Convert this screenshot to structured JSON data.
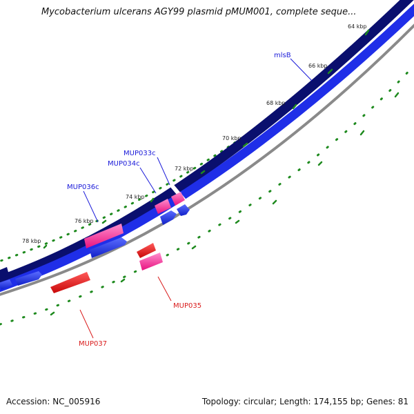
{
  "header": {
    "title": "Mycobacterium ulcerans AGY99 plasmid pMUM001, complete seque..."
  },
  "footer": {
    "accession": "Accession: NC_005916",
    "summary": "Topology: circular; Length: 174,155 bp; Genes: 81"
  },
  "scale": {
    "tick_labels": [
      "64 kbp",
      "66 kbp",
      "68 kbp",
      "70 kbp",
      "72 kbp",
      "74 kbp",
      "76 kbp",
      "78 kbp"
    ]
  },
  "genes": [
    {
      "label": "mlsB",
      "color": "#1a1ad9"
    },
    {
      "label": "MUP033c",
      "color": "#1a1ad9"
    },
    {
      "label": "MUP034c",
      "color": "#1a1ad9"
    },
    {
      "label": "MUP036c",
      "color": "#1a1ad9"
    },
    {
      "label": "MUP035",
      "color": "#d91a1a"
    },
    {
      "label": "MUP037",
      "color": "#d91a1a"
    }
  ],
  "colors": {
    "backbone_outer": "#0a0f6e",
    "backbone_inner": "#1f2ee8",
    "backbone_ring": "#8a8a8a",
    "forward_cds": "#ff1493",
    "reverse_cds": "#1f2ee8",
    "rna_feature": "#e81010",
    "tick_color": "#1e8a1e"
  }
}
